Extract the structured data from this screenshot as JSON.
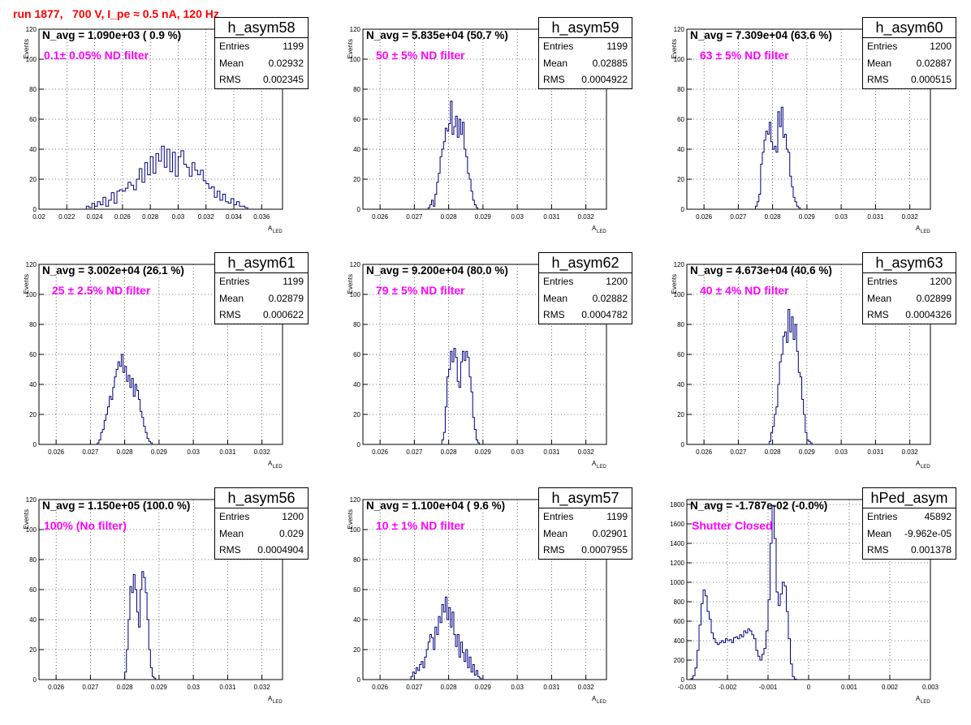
{
  "page_title": "run 1877,   700 V, I_pe ≈ 0.5 nA, 120 Hz",
  "line_color": "#000080",
  "accent_text_color": "#ff00ff",
  "title_color": "#ff0000",
  "panels": [
    {
      "name": "h_asym58",
      "n_avg": "N_avg = 1.090e+03 ( 0.9 %)",
      "filter": "0.1± 0.05% ND filter",
      "entries": "1199",
      "mean": "0.02932",
      "rms": "0.002345",
      "ylabel": "Events",
      "xlabel": "A",
      "xlabel_sub": "LED",
      "xlim": [
        0.02,
        0.0375
      ],
      "ylim": [
        0,
        120
      ],
      "xticks": [
        "0.02",
        "0.022",
        "0.024",
        "0.026",
        "0.028",
        "0.03",
        "0.032",
        "0.034",
        "0.036"
      ],
      "xtick_vals": [
        0.02,
        0.022,
        0.024,
        0.026,
        0.028,
        0.03,
        0.032,
        0.034,
        0.036
      ],
      "yticks": [
        "0",
        "20",
        "40",
        "60",
        "80",
        "100",
        "120"
      ],
      "ytick_vals": [
        0,
        20,
        40,
        60,
        80,
        100,
        120
      ],
      "chart_data": {
        "type": "bar",
        "bin_width": 0.0002,
        "x_start": 0.0234,
        "values": [
          2,
          1,
          4,
          2,
          5,
          3,
          8,
          2,
          6,
          11,
          4,
          12,
          13,
          12,
          14,
          18,
          16,
          13,
          20,
          27,
          18,
          31,
          23,
          35,
          24,
          37,
          32,
          42,
          28,
          40,
          25,
          38,
          22,
          35,
          39,
          30,
          28,
          22,
          31,
          26,
          23,
          26,
          19,
          17,
          14,
          15,
          8,
          12,
          6,
          10,
          5,
          4,
          7,
          3,
          5,
          2,
          2,
          1
        ]
      }
    },
    {
      "name": "h_asym59",
      "n_avg": "N_avg = 5.835e+04 (50.7 %)",
      "filter": "50 ± 5% ND filter",
      "entries": "1199",
      "mean": "0.02885",
      "rms": "0.0004922",
      "ylabel": "Events",
      "xlabel": "A",
      "xlabel_sub": "LED",
      "xlim": [
        0.0255,
        0.0326
      ],
      "ylim": [
        0,
        120
      ],
      "xticks": [
        "0.026",
        "0.027",
        "0.028",
        "0.029",
        "0.03",
        "0.031",
        "0.032"
      ],
      "xtick_vals": [
        0.026,
        0.027,
        0.028,
        0.029,
        0.03,
        0.031,
        0.032
      ],
      "yticks": [
        "0",
        "20",
        "40",
        "60",
        "80",
        "100",
        "120"
      ],
      "ytick_vals": [
        0,
        20,
        40,
        60,
        80,
        100,
        120
      ],
      "chart_data": {
        "type": "bar",
        "bin_width": 5e-05,
        "x_start": 0.0274,
        "values": [
          1,
          3,
          6,
          2,
          10,
          18,
          24,
          35,
          40,
          45,
          54,
          52,
          57,
          72,
          50,
          55,
          62,
          48,
          60,
          50,
          58,
          40,
          35,
          24,
          20,
          12,
          6,
          3,
          1
        ]
      }
    },
    {
      "name": "h_asym60",
      "n_avg": "N_avg = 7.309e+04 (63.6 %)",
      "filter": "63 ± 5% ND filter",
      "entries": "1200",
      "mean": "0.02887",
      "rms": "0.000515",
      "ylabel": "Events",
      "xlabel": "A",
      "xlabel_sub": "LED",
      "xlim": [
        0.0255,
        0.0326
      ],
      "ylim": [
        0,
        120
      ],
      "xticks": [
        "0.026",
        "0.027",
        "0.028",
        "0.029",
        "0.03",
        "0.031",
        "0.032"
      ],
      "xtick_vals": [
        0.026,
        0.027,
        0.028,
        0.029,
        0.03,
        0.031,
        0.032
      ],
      "yticks": [
        "0",
        "20",
        "40",
        "60",
        "80",
        "100",
        "120"
      ],
      "ytick_vals": [
        0,
        20,
        40,
        60,
        80,
        100,
        120
      ],
      "chart_data": {
        "type": "bar",
        "bin_width": 5e-05,
        "x_start": 0.0275,
        "values": [
          2,
          5,
          10,
          30,
          38,
          46,
          52,
          50,
          58,
          45,
          40,
          42,
          38,
          65,
          55,
          68,
          48,
          50,
          40,
          38,
          22,
          15,
          8,
          5,
          2,
          1
        ]
      }
    },
    {
      "name": "h_asym61",
      "n_avg": "N_avg = 3.002e+04 (26.1 %)",
      "filter": "25 ± 2.5% ND filter",
      "entries": "1199",
      "mean": "0.02879",
      "rms": "0.000622",
      "ylabel": "Events",
      "xlabel": "A",
      "xlabel_sub": "LED",
      "xlim": [
        0.0255,
        0.0326
      ],
      "ylim": [
        0,
        120
      ],
      "xticks": [
        "0.026",
        "0.027",
        "0.028",
        "0.029",
        "0.03",
        "0.031",
        "0.032"
      ],
      "xtick_vals": [
        0.026,
        0.027,
        0.028,
        0.029,
        0.03,
        0.031,
        0.032
      ],
      "yticks": [
        "0",
        "20",
        "40",
        "60",
        "80",
        "100",
        "120"
      ],
      "ytick_vals": [
        0,
        20,
        40,
        60,
        80,
        100,
        120
      ],
      "chart_data": {
        "type": "bar",
        "bin_width": 5e-05,
        "x_start": 0.0272,
        "values": [
          1,
          3,
          8,
          10,
          16,
          20,
          25,
          32,
          30,
          38,
          45,
          50,
          55,
          52,
          60,
          48,
          52,
          42,
          46,
          38,
          44,
          32,
          40,
          36,
          30,
          22,
          18,
          12,
          8,
          4,
          2,
          1
        ]
      }
    },
    {
      "name": "h_asym62",
      "n_avg": "N_avg = 9.200e+04 (80.0 %)",
      "filter": "79 ± 5% ND filter",
      "entries": "1200",
      "mean": "0.02882",
      "rms": "0.0004782",
      "ylabel": "Events",
      "xlabel": "A",
      "xlabel_sub": "LED",
      "xlim": [
        0.0255,
        0.0326
      ],
      "ylim": [
        0,
        120
      ],
      "xticks": [
        "0.026",
        "0.027",
        "0.028",
        "0.029",
        "0.03",
        "0.031",
        "0.032"
      ],
      "xtick_vals": [
        0.026,
        0.027,
        0.028,
        0.029,
        0.03,
        0.031,
        0.032
      ],
      "yticks": [
        "0",
        "20",
        "40",
        "60",
        "80",
        "100",
        "120"
      ],
      "ytick_vals": [
        0,
        20,
        40,
        60,
        80,
        100,
        120
      ],
      "chart_data": {
        "type": "bar",
        "bin_width": 5e-05,
        "x_start": 0.0278,
        "values": [
          3,
          8,
          25,
          45,
          50,
          62,
          55,
          64,
          58,
          42,
          38,
          55,
          62,
          56,
          62,
          58,
          45,
          35,
          18,
          10,
          3,
          1
        ]
      }
    },
    {
      "name": "h_asym63",
      "n_avg": "N_avg = 4.673e+04 (40.6 %)",
      "filter": "40 ± 4% ND filter",
      "entries": "1200",
      "mean": "0.02899",
      "rms": "0.0004326",
      "ylabel": "Events",
      "xlabel": "A",
      "xlabel_sub": "LED",
      "xlim": [
        0.0255,
        0.0326
      ],
      "ylim": [
        0,
        120
      ],
      "xticks": [
        "0.026",
        "0.027",
        "0.028",
        "0.029",
        "0.03",
        "0.031",
        "0.032"
      ],
      "xtick_vals": [
        0.026,
        0.027,
        0.028,
        0.029,
        0.03,
        0.031,
        0.032
      ],
      "yticks": [
        "0",
        "20",
        "40",
        "60",
        "80",
        "100",
        "120"
      ],
      "ytick_vals": [
        0,
        20,
        40,
        60,
        80,
        100,
        120
      ],
      "chart_data": {
        "type": "bar",
        "bin_width": 5e-05,
        "x_start": 0.0279,
        "values": [
          2,
          8,
          12,
          20,
          25,
          40,
          55,
          60,
          72,
          75,
          68,
          90,
          75,
          85,
          70,
          80,
          62,
          48,
          45,
          30,
          20,
          8,
          3,
          2,
          1
        ]
      }
    },
    {
      "name": "h_asym56",
      "n_avg": "N_avg = 1.150e+05 (100.0 %)",
      "filter": "100% (No filter)",
      "entries": "1200",
      "mean": "0.029",
      "rms": "0.0004904",
      "ylabel": "Events",
      "xlabel": "A",
      "xlabel_sub": "LED",
      "xlim": [
        0.0255,
        0.0326
      ],
      "ylim": [
        0,
        120
      ],
      "xticks": [
        "0.026",
        "0.027",
        "0.028",
        "0.029",
        "0.03",
        "0.031",
        "0.032"
      ],
      "xtick_vals": [
        0.026,
        0.027,
        0.028,
        0.029,
        0.03,
        0.031,
        0.032
      ],
      "yticks": [
        "0",
        "20",
        "40",
        "60",
        "80",
        "100",
        "120"
      ],
      "ytick_vals": [
        0,
        20,
        40,
        60,
        80,
        100,
        120
      ],
      "chart_data": {
        "type": "bar",
        "bin_width": 5e-05,
        "x_start": 0.028,
        "values": [
          5,
          20,
          40,
          62,
          58,
          70,
          60,
          45,
          35,
          60,
          72,
          68,
          58,
          40,
          20,
          8,
          2,
          1
        ]
      }
    },
    {
      "name": "h_asym57",
      "n_avg": "N_avg = 1.100e+04 ( 9.6 %)",
      "filter": "10 ± 1% ND filter",
      "entries": "1199",
      "mean": "0.02901",
      "rms": "0.0007955",
      "ylabel": "Events",
      "xlabel": "A",
      "xlabel_sub": "LED",
      "xlim": [
        0.0255,
        0.0326
      ],
      "ylim": [
        0,
        120
      ],
      "xticks": [
        "0.026",
        "0.027",
        "0.028",
        "0.029",
        "0.03",
        "0.031",
        "0.032"
      ],
      "xtick_vals": [
        0.026,
        0.027,
        0.028,
        0.029,
        0.03,
        0.031,
        0.032
      ],
      "yticks": [
        "0",
        "20",
        "40",
        "60",
        "80",
        "100",
        "120"
      ],
      "ytick_vals": [
        0,
        20,
        40,
        60,
        80,
        100,
        120
      ],
      "chart_data": {
        "type": "bar",
        "bin_width": 5e-05,
        "x_start": 0.0269,
        "values": [
          2,
          5,
          4,
          8,
          6,
          10,
          12,
          8,
          15,
          20,
          25,
          30,
          28,
          20,
          35,
          30,
          42,
          38,
          50,
          45,
          55,
          40,
          48,
          35,
          45,
          30,
          22,
          30,
          15,
          25,
          18,
          12,
          20,
          8,
          15,
          5,
          10,
          3,
          6,
          2,
          1
        ]
      }
    },
    {
      "name": "hPed_asym",
      "n_avg": "N_avg = -1.787e-02 (-0.0%)",
      "filter": "Shutter Closed",
      "entries": "45892",
      "mean": "-9.962e-05",
      "rms": "0.001378",
      "ylabel": "",
      "xlabel": "A",
      "xlabel_sub": "LED",
      "xlim": [
        -0.003,
        0.003
      ],
      "ylim": [
        0,
        1850
      ],
      "xticks": [
        "-0.003",
        "-0.002",
        "-0.001",
        "0",
        "0.001",
        "0.002",
        "0.003"
      ],
      "xtick_vals": [
        -0.003,
        -0.002,
        -0.001,
        0,
        0.001,
        0.002,
        0.003
      ],
      "yticks": [
        "0",
        "200",
        "400",
        "600",
        "800",
        "1000",
        "1200",
        "1400",
        "1600",
        "1800"
      ],
      "ytick_vals": [
        0,
        200,
        400,
        600,
        800,
        1000,
        1200,
        1400,
        1600,
        1800
      ],
      "chart_data": {
        "type": "bar",
        "bin_width": 5e-05,
        "x_start": -0.0029,
        "values": [
          10,
          40,
          120,
          300,
          560,
          780,
          920,
          860,
          700,
          620,
          480,
          420,
          380,
          360,
          380,
          400,
          380,
          420,
          400,
          410,
          380,
          430,
          440,
          420,
          460,
          440,
          500,
          480,
          520,
          500,
          460,
          420,
          300,
          240,
          200,
          260,
          320,
          500,
          820,
          1400,
          1790,
          1450,
          900,
          760,
          880,
          1000,
          960,
          700,
          420,
          160,
          30,
          5
        ]
      }
    }
  ]
}
